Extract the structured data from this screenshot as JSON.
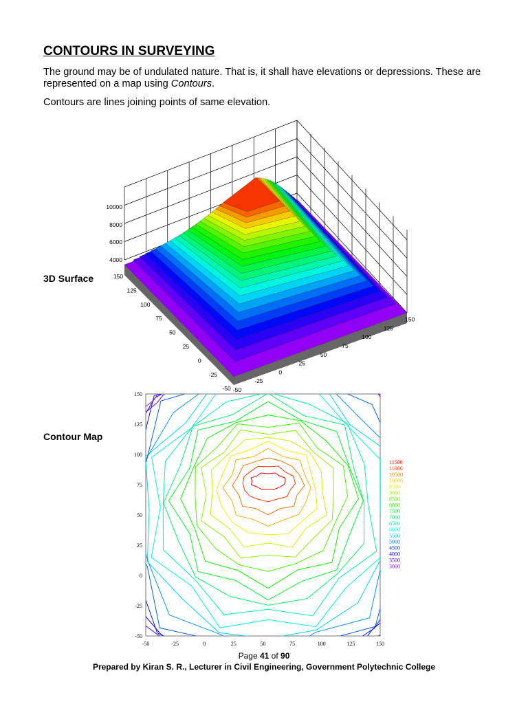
{
  "header": {
    "title": "CONTOURS IN SURVEYING"
  },
  "paragraphs": [
    {
      "text": "The ground may be of undulated nature. That is, it shall have elevations or depressions. These are represented on a map using ",
      "emphasis": "Contours",
      "end": "."
    },
    {
      "text": "Contours are lines joining points of same elevation."
    }
  ],
  "surface": {
    "label": "3D Surface",
    "zticks": [
      4000,
      6000,
      8000,
      10000
    ],
    "yticks": [
      150,
      125,
      100,
      75,
      50,
      25,
      0,
      -25,
      -50
    ],
    "xticks": [
      -50,
      -25,
      0,
      25,
      50,
      75,
      100,
      125,
      150
    ]
  },
  "contour": {
    "label": "Contour Map",
    "xticks": [
      -50,
      -25,
      0,
      25,
      50,
      75,
      100,
      125,
      150
    ],
    "yticks": [
      150,
      125,
      100,
      75,
      50,
      25,
      0,
      -25,
      -50
    ],
    "levels": [
      11500,
      11000,
      10500,
      10000,
      9500,
      9000,
      8500,
      8000,
      7500,
      7000,
      6500,
      6000,
      5500,
      5000,
      4500,
      4000,
      3500,
      3000
    ]
  },
  "footer": {
    "page_prefix": "Page ",
    "page": "41",
    "page_mid": " of ",
    "total": "90",
    "credit": "Prepared by Kiran S. R., Lecturer in Civil Engineering, Government Polytechnic College"
  }
}
